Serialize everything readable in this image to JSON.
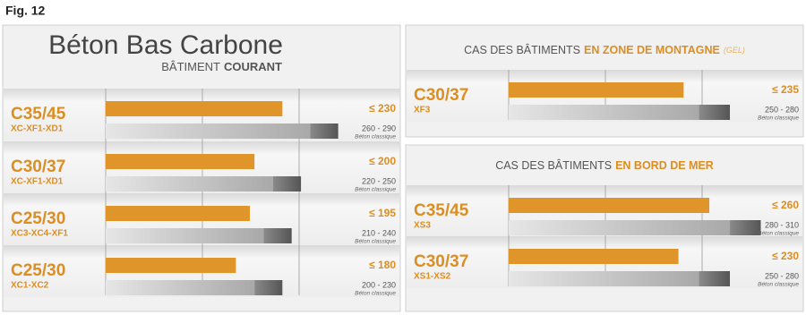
{
  "figure_label": "Fig. 12",
  "chart_data": [
    {
      "type": "bar",
      "title": "Béton Bas Carbone",
      "subtitle": "BÂTIMENT",
      "subtitle_highlight": "COURANT",
      "categories": [
        "C35/45",
        "C30/37",
        "C25/30",
        "C25/30"
      ],
      "classes": [
        "XC-XF1-XD1",
        "XC-XF1-XD1",
        "XC3-XC4-XF1",
        "XC1-XC2"
      ],
      "xlim": [
        40,
        300
      ],
      "series": [
        {
          "color": "#e0952b",
          "values": [
            230,
            200,
            195,
            180
          ],
          "value_labels": [
            "≤ 230",
            "≤ 200",
            "≤ 195",
            "≤ 180"
          ]
        }
      ],
      "ranges": {
        "low": [
          260,
          220,
          210,
          200
        ],
        "high": [
          290,
          250,
          240,
          230
        ],
        "labels": [
          "260 - 290",
          "220 - 250",
          "210 - 240",
          "200 - 230"
        ],
        "note": "Béton classique"
      }
    },
    {
      "type": "bar",
      "title": "CAS DES BÂTIMENTS",
      "title_highlight": "EN ZONE DE MONTAGNE",
      "title_note": "(GEL)",
      "categories": [
        "C30/37"
      ],
      "classes": [
        "XF3"
      ],
      "xlim": [
        65,
        300
      ],
      "series": [
        {
          "color": "#e0952b",
          "values": [
            235
          ],
          "value_labels": [
            "≤ 235"
          ]
        }
      ],
      "ranges": {
        "low": [
          250
        ],
        "high": [
          280
        ],
        "labels": [
          "250 - 280"
        ],
        "note": "Béton classique"
      }
    },
    {
      "type": "bar",
      "title": "CAS DES BÂTIMENTS",
      "title_highlight": "EN BORD DE MER",
      "categories": [
        "C35/45",
        "C30/37"
      ],
      "classes": [
        "XS3",
        "XS1-XS2"
      ],
      "xlim": [
        65,
        300
      ],
      "series": [
        {
          "color": "#e0952b",
          "values": [
            260,
            230
          ],
          "value_labels": [
            "≤ 260",
            "≤ 230"
          ]
        }
      ],
      "ranges": {
        "low": [
          280,
          250
        ],
        "high": [
          310,
          280
        ],
        "labels": [
          "280 - 310",
          "250 - 280"
        ],
        "note": "Béton classique"
      }
    }
  ]
}
